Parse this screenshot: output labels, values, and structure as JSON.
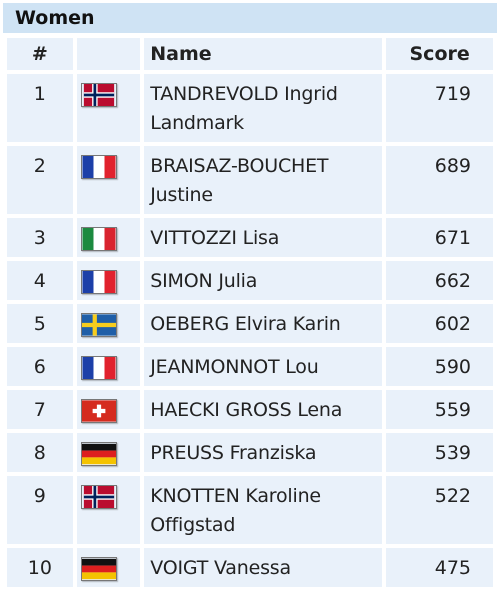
{
  "section_title": "Women",
  "columns": {
    "rank": "#",
    "flag": "",
    "name": "Name",
    "score": "Score"
  },
  "rows": [
    {
      "rank": "1",
      "country": "norway-flag-icon",
      "name": "TANDREVOLD Ingrid Landmark",
      "score": "719"
    },
    {
      "rank": "2",
      "country": "france-flag-icon",
      "name": "BRAISAZ-BOUCHET Justine",
      "score": "689"
    },
    {
      "rank": "3",
      "country": "italy-flag-icon",
      "name": "VITTOZZI Lisa",
      "score": "671"
    },
    {
      "rank": "4",
      "country": "france-flag-icon",
      "name": "SIMON Julia",
      "score": "662"
    },
    {
      "rank": "5",
      "country": "sweden-flag-icon",
      "name": "OEBERG Elvira Karin",
      "score": "602"
    },
    {
      "rank": "6",
      "country": "france-flag-icon",
      "name": "JEANMONNOT Lou",
      "score": "590"
    },
    {
      "rank": "7",
      "country": "switzerland-flag-icon",
      "name": "HAECKI GROSS Lena",
      "score": "559"
    },
    {
      "rank": "8",
      "country": "germany-flag-icon",
      "name": "PREUSS Franziska",
      "score": "539"
    },
    {
      "rank": "9",
      "country": "norway-flag-icon",
      "name": "KNOTTEN Karoline Offigstad",
      "score": "522"
    },
    {
      "rank": "10",
      "country": "germany-flag-icon",
      "name": "VOIGT Vanessa",
      "score": "475"
    }
  ],
  "colors": {
    "header_bg": "#cfe3f4",
    "cell_bg": "#e9f1fa"
  }
}
